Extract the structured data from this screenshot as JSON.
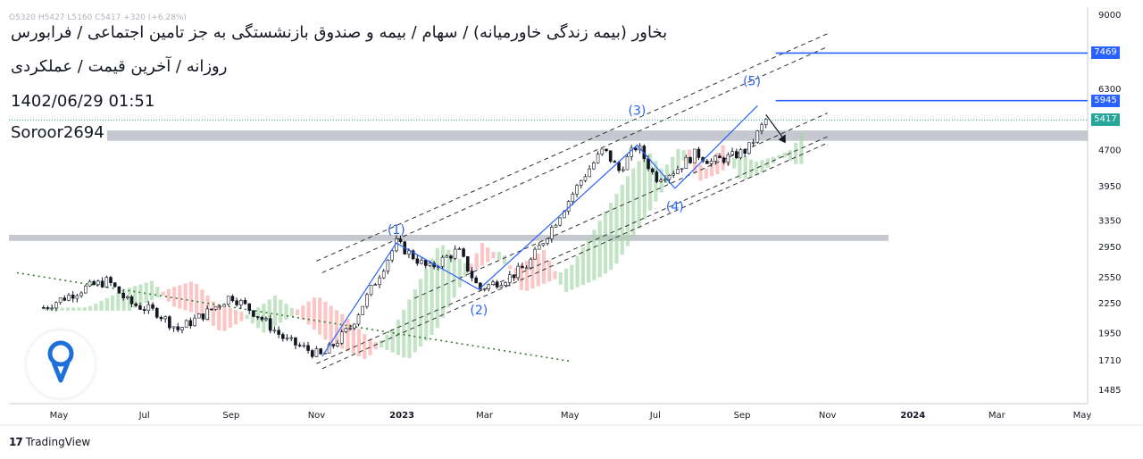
{
  "header": {
    "title": "بخاور (بیمه زندگی خاورمیانه) / سهام / بیمه و صندوق بازنشستگی به جز تامین اجتماعی / فرابورس",
    "subtitle": "روزانه / آخرین قیمت / عملکردی",
    "datetime": "1402/06/29 01:51",
    "username": "Soroor2694",
    "ohlc_line": "O5320 H5427 L5160 C5417 +320 (+6.28%)"
  },
  "footer": {
    "brand": "TradingView"
  },
  "price_badges": [
    {
      "label": "7469",
      "value": 7469,
      "color": "#2962ff"
    },
    {
      "label": "5945",
      "value": 5945,
      "color": "#2962ff"
    },
    {
      "label": "5417",
      "value": 5417,
      "color": "#26a69a"
    }
  ],
  "chart_data": {
    "type": "candlestick",
    "y_scale": "log",
    "ylim": [
      1485,
      9000
    ],
    "y_ticks": [
      "9000",
      "6300",
      "4700",
      "3950",
      "3350",
      "2950",
      "2550",
      "2250",
      "1950",
      "1710",
      "1485"
    ],
    "y_tick_values": [
      9000,
      6300,
      4700,
      3950,
      3350,
      2950,
      2550,
      2250,
      1950,
      1710,
      1485
    ],
    "x_ticks": [
      "May",
      "Jul",
      "Sep",
      "Nov",
      "2023",
      "Mar",
      "May",
      "Jul",
      "Sep",
      "Nov",
      "2024",
      "Mar",
      "May"
    ],
    "x_tick_dates": [
      "2022-05-01",
      "2022-07-01",
      "2022-09-01",
      "2022-11-01",
      "2023-01-01",
      "2023-03-01",
      "2023-05-01",
      "2023-07-01",
      "2023-09-01",
      "2023-11-01",
      "2024-01-01",
      "2024-03-01",
      "2024-05-01"
    ],
    "price_path": [
      [
        "2022-04-20",
        2200
      ],
      [
        "2022-05-20",
        2420
      ],
      [
        "2022-06-05",
        2500
      ],
      [
        "2022-06-20",
        2250
      ],
      [
        "2022-07-10",
        2150
      ],
      [
        "2022-07-25",
        1980
      ],
      [
        "2022-08-15",
        2150
      ],
      [
        "2022-09-01",
        2330
      ],
      [
        "2022-09-20",
        2120
      ],
      [
        "2022-10-10",
        1880
      ],
      [
        "2022-10-25",
        1800
      ],
      [
        "2022-11-05",
        1740
      ],
      [
        "2022-11-25",
        2000
      ],
      [
        "2022-12-10",
        2400
      ],
      [
        "2022-12-28",
        3000
      ],
      [
        "2023-01-20",
        2650
      ],
      [
        "2023-02-10",
        2900
      ],
      [
        "2023-02-25",
        2400
      ],
      [
        "2023-03-20",
        2560
      ],
      [
        "2023-04-01",
        2700
      ],
      [
        "2023-04-20",
        3300
      ],
      [
        "2023-05-10",
        4100
      ],
      [
        "2023-05-25",
        4700
      ],
      [
        "2023-06-05",
        4250
      ],
      [
        "2023-06-18",
        4800
      ],
      [
        "2023-07-01",
        4100
      ],
      [
        "2023-07-15",
        4250
      ],
      [
        "2023-07-30",
        4620
      ],
      [
        "2023-08-10",
        4430
      ],
      [
        "2023-08-25",
        4550
      ],
      [
        "2023-09-05",
        4700
      ],
      [
        "2023-09-18",
        5417
      ]
    ],
    "wave_labels": [
      {
        "label": "(1)",
        "date": "2022-12-28",
        "price": 3130
      },
      {
        "label": "(2)",
        "date": "2023-02-25",
        "price": 2130
      },
      {
        "label": "(3)",
        "date": "2023-06-18",
        "price": 5550
      },
      {
        "label": "(4)",
        "date": "2023-07-15",
        "price": 3500
      },
      {
        "label": "(5)",
        "date": "2023-09-08",
        "price": 6400
      }
    ],
    "wave_path": [
      [
        "2022-11-05",
        1740
      ],
      [
        "2022-12-28",
        3000
      ],
      [
        "2023-02-25",
        2400
      ],
      [
        "2023-06-18",
        4800
      ],
      [
        "2023-07-15",
        3900
      ],
      [
        "2023-09-12",
        5800
      ]
    ],
    "horizontal_lines": [
      7469,
      5945
    ],
    "last_price": 5417,
    "resistance_zones": [
      [
        4900,
        5150
      ],
      [
        3030,
        3120
      ]
    ],
    "channel_lines": [
      {
        "from": [
          "2022-11-01",
          2750
        ],
        "to": [
          "2023-11-01",
          8200
        ]
      },
      {
        "from": [
          "2022-11-01",
          1680
        ],
        "to": [
          "2023-11-01",
          5000
        ]
      },
      {
        "from": [
          "2022-11-05",
          2600
        ],
        "to": [
          "2023-11-01",
          7700
        ]
      },
      {
        "from": [
          "2022-11-05",
          1640
        ],
        "to": [
          "2023-11-01",
          4850
        ]
      },
      {
        "from": [
          "2023-01-10",
          2300
        ],
        "to": [
          "2023-11-01",
          5600
        ]
      }
    ],
    "downtrend_line": {
      "from": [
        "2022-04-01",
        2600
      ],
      "to": [
        "2023-05-01",
        1700
      ]
    },
    "grid": false
  }
}
